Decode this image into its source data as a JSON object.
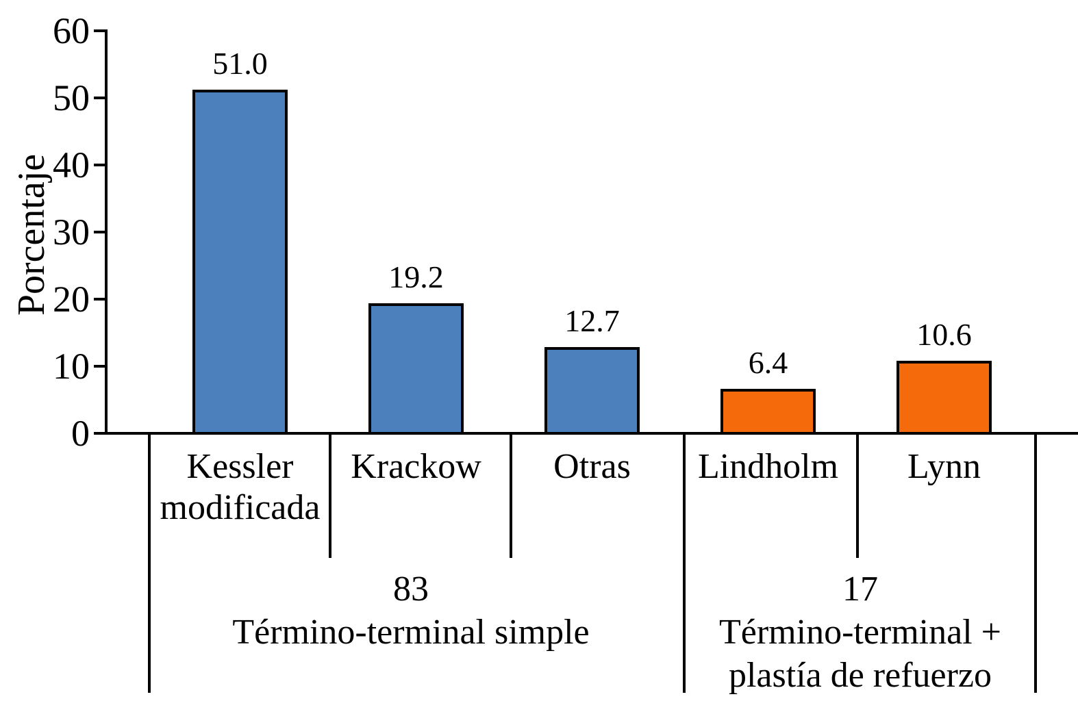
{
  "chart_data": {
    "type": "bar",
    "title": "",
    "xlabel": "",
    "ylabel": "Porcentaje",
    "ylim": [
      0,
      60
    ],
    "yticks": [
      0,
      10,
      20,
      30,
      40,
      50,
      60
    ],
    "grid": false,
    "legend": false,
    "categories": [
      "Kessler modificada",
      "Krackow",
      "Otras",
      "Lindholm",
      "Lynn"
    ],
    "category_label_lines": [
      [
        "Kessler",
        "modificada"
      ],
      [
        "Krackow"
      ],
      [
        "Otras"
      ],
      [
        "Lindholm"
      ],
      [
        "Lynn"
      ]
    ],
    "values": [
      51.0,
      19.2,
      12.7,
      6.4,
      10.6
    ],
    "value_labels": [
      "51.0",
      "19.2",
      "12.7",
      "6.4",
      "10.6"
    ],
    "bar_colors": [
      "#4C80BC",
      "#4C80BC",
      "#4C80BC",
      "#F56A0B",
      "#F56A0B"
    ],
    "groups": [
      {
        "size_label": "83",
        "name_lines": [
          "Término-terminal simple"
        ],
        "category_span": [
          "Kessler modificada",
          "Krackow",
          "Otras"
        ]
      },
      {
        "size_label": "17",
        "name_lines": [
          "Término-terminal +",
          "plastía de refuerzo"
        ],
        "category_span": [
          "Lindholm",
          "Lynn"
        ]
      }
    ],
    "colors": {
      "bar_blue": "#4C80BC",
      "bar_orange": "#F56A0B",
      "axis": "#000000",
      "background": "#FFFFFF"
    }
  }
}
